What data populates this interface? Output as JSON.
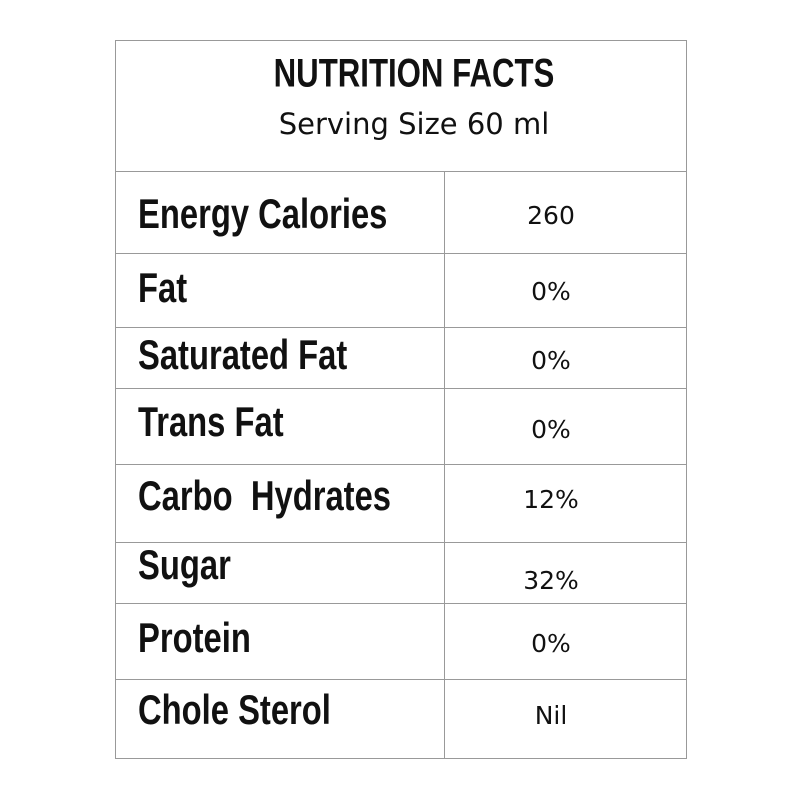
{
  "header": {
    "title": "NUTRITION FACTS",
    "subtitle": "Serving Size 60 ml"
  },
  "table": {
    "rows": [
      [
        "Energy Calories",
        "260"
      ],
      [
        "Fat",
        "0%"
      ],
      [
        "Saturated Fat",
        "0%"
      ],
      [
        "Trans Fat",
        "0%"
      ],
      [
        "Carbo  Hydrates",
        "12%"
      ],
      [
        "Sugar",
        "32%"
      ],
      [
        "Protein",
        "0%"
      ],
      [
        "Chole Sterol",
        "Nil"
      ]
    ]
  }
}
